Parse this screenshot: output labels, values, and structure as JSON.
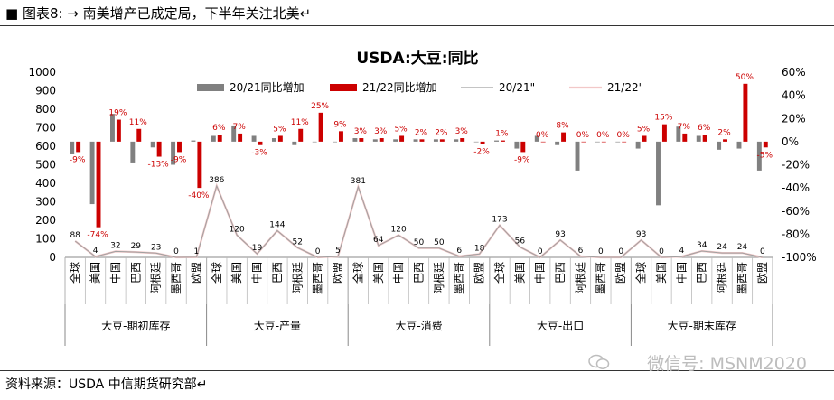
{
  "header": {
    "title": "■ 图表8: → 南美增产已成定局，下半年关注北美↵"
  },
  "footer": {
    "source": "资料来源：USDA  中信期货研究部↵"
  },
  "watermark": {
    "text": "微信号: MSNM2020",
    "icon": "wechat-icon"
  },
  "chart_data": {
    "type": "bar",
    "title": "USDA:大豆:同比",
    "legend_position": "top",
    "legend": [
      "20/21同比增加",
      "21/22同比增加",
      "20/21\"",
      "21/22\""
    ],
    "colors": {
      "bar2021": "#808080",
      "bar2122": "#cc0000",
      "line2021": "#a0a0a0",
      "line2122": "#f2c8c8"
    },
    "left_axis": {
      "ticks": [
        0,
        100,
        200,
        300,
        400,
        500,
        600,
        700,
        800,
        900,
        1000
      ],
      "ylim": [
        0,
        1000
      ]
    },
    "right_axis": {
      "ticks": [
        "60%",
        "40%",
        "20%",
        "0%",
        "-20%",
        "-40%",
        "-60%",
        "-80%",
        "-100%"
      ],
      "ylim": [
        -100,
        60
      ]
    },
    "categories": [
      "全球",
      "美国",
      "中国",
      "巴西",
      "阿根廷",
      "墨西哥",
      "欧盟",
      "全球",
      "美国",
      "中国",
      "巴西",
      "阿根廷",
      "墨西哥",
      "欧盟",
      "全球",
      "美国",
      "中国",
      "巴西",
      "阿根廷",
      "墨西哥",
      "欧盟",
      "全球",
      "美国",
      "中国",
      "巴西",
      "阿根廷",
      "墨西哥",
      "欧盟",
      "全球",
      "美国",
      "中国",
      "巴西",
      "阿根廷",
      "墨西哥",
      "欧盟"
    ],
    "groups": [
      "大豆-期初库存",
      "大豆-产量",
      "大豆-消费",
      "大豆-出口",
      "大豆-期末库存"
    ],
    "series": [
      {
        "name": "20/21同比增加",
        "axis": "right",
        "values": [
          -11,
          -54,
          24,
          -18,
          -5,
          -20,
          1,
          5,
          14,
          5,
          3,
          -3,
          0,
          0,
          3,
          2,
          2,
          2,
          2,
          2,
          0,
          1,
          -6,
          5,
          -3,
          -25,
          0,
          0,
          -6,
          -55,
          13,
          5,
          -7,
          -6,
          -25
        ]
      },
      {
        "name": "21/22同比增加",
        "axis": "right",
        "values": [
          -9,
          -74,
          19,
          11,
          -13,
          -9,
          -40,
          6,
          7,
          -3,
          5,
          11,
          25,
          9,
          3,
          3,
          5,
          2,
          2,
          3,
          -2,
          1,
          -9,
          0,
          8,
          0,
          0,
          0,
          5,
          15,
          7,
          6,
          2,
          50,
          -5
        ]
      },
      {
        "name": "20/21\"",
        "axis": "left",
        "values": [
          88,
          4,
          32,
          29,
          23,
          0,
          1,
          386,
          120,
          19,
          144,
          52,
          0,
          5,
          381,
          64,
          120,
          50,
          50,
          6,
          18,
          173,
          56,
          0,
          93,
          6,
          0,
          0,
          93,
          0,
          4,
          34,
          24,
          24,
          0
        ]
      },
      {
        "name": "21/22\"",
        "axis": "left",
        "values": [
          88,
          4,
          32,
          29,
          23,
          0,
          1,
          386,
          120,
          19,
          144,
          52,
          0,
          5,
          381,
          64,
          120,
          50,
          50,
          6,
          18,
          173,
          56,
          0,
          93,
          6,
          0,
          0,
          93,
          0,
          4,
          34,
          24,
          24,
          0
        ]
      }
    ],
    "bar_pct_labels": [
      "-9%",
      "-74%",
      "19%",
      "11%",
      "-13%",
      "-9%",
      "-40%",
      "6%",
      "7%",
      "-3%",
      "5%",
      "11%",
      "25%",
      "9%",
      "3%",
      "3%",
      "5%",
      "2%",
      "2%",
      "3%",
      "-2%",
      "1%",
      "-9%",
      "0%",
      "8%",
      "0%",
      "0%",
      "0%",
      "5%",
      "15%",
      "7%",
      "6%",
      "2%",
      "50%",
      "-5%"
    ],
    "line_value_labels": [
      "88",
      "4",
      "32",
      "29",
      "23",
      "0",
      "1",
      "386",
      "120",
      "19",
      "144",
      "52",
      "0",
      "5",
      "381",
      "64",
      "120",
      "50",
      "50",
      "6",
      "18",
      "173",
      "56",
      "0",
      "93",
      "6",
      "0",
      "0",
      "93",
      "0",
      "4",
      "34",
      "24",
      "24",
      "0"
    ]
  }
}
